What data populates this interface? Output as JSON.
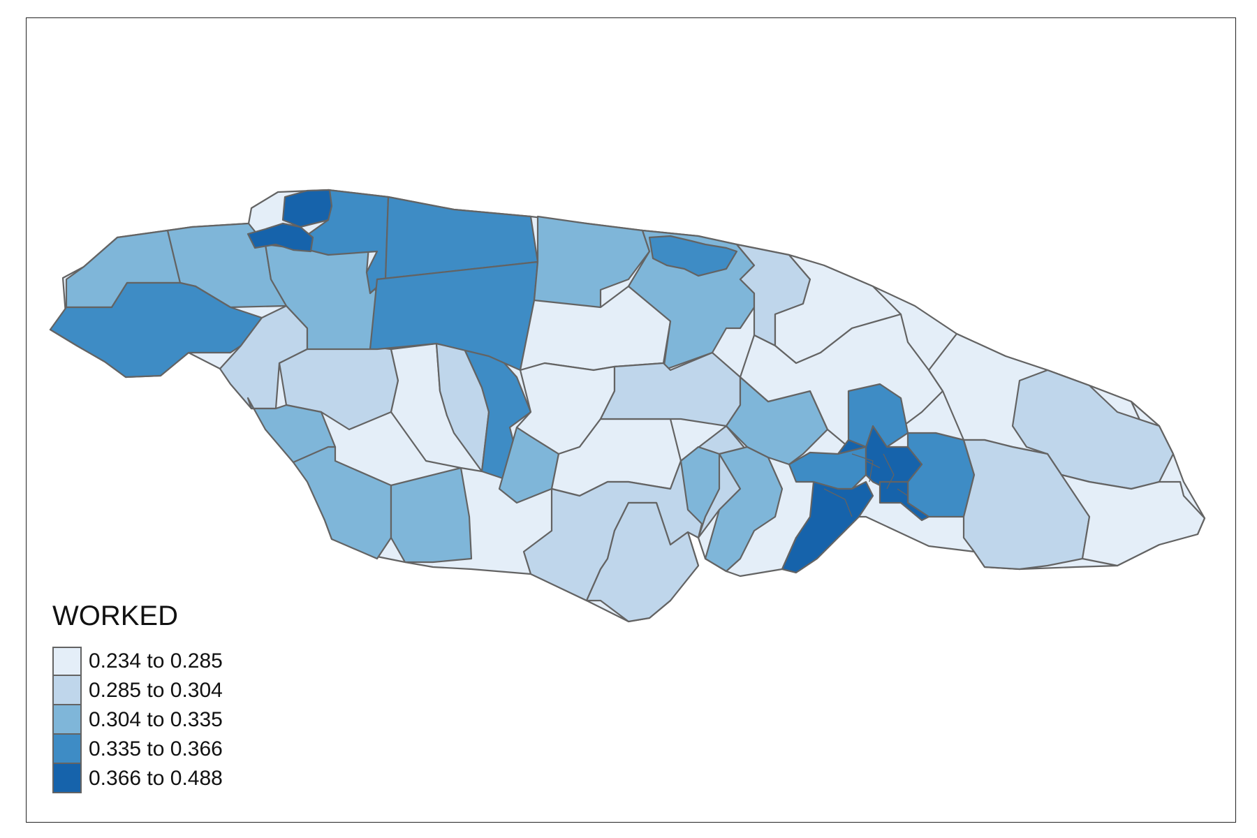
{
  "legend": {
    "title": "WORKED",
    "classes": [
      {
        "label": "0.234 to 0.285",
        "color": "#e4eef8"
      },
      {
        "label": "0.285 to 0.304",
        "color": "#bfd6eb"
      },
      {
        "label": "0.304 to 0.335",
        "color": "#7fb6d9"
      },
      {
        "label": "0.335 to 0.366",
        "color": "#3e8cc5"
      },
      {
        "label": "0.366 to 0.488",
        "color": "#1663ab"
      }
    ]
  },
  "colors": {
    "border": "#636363",
    "frame": "#222222",
    "background": "#ffffff"
  }
}
